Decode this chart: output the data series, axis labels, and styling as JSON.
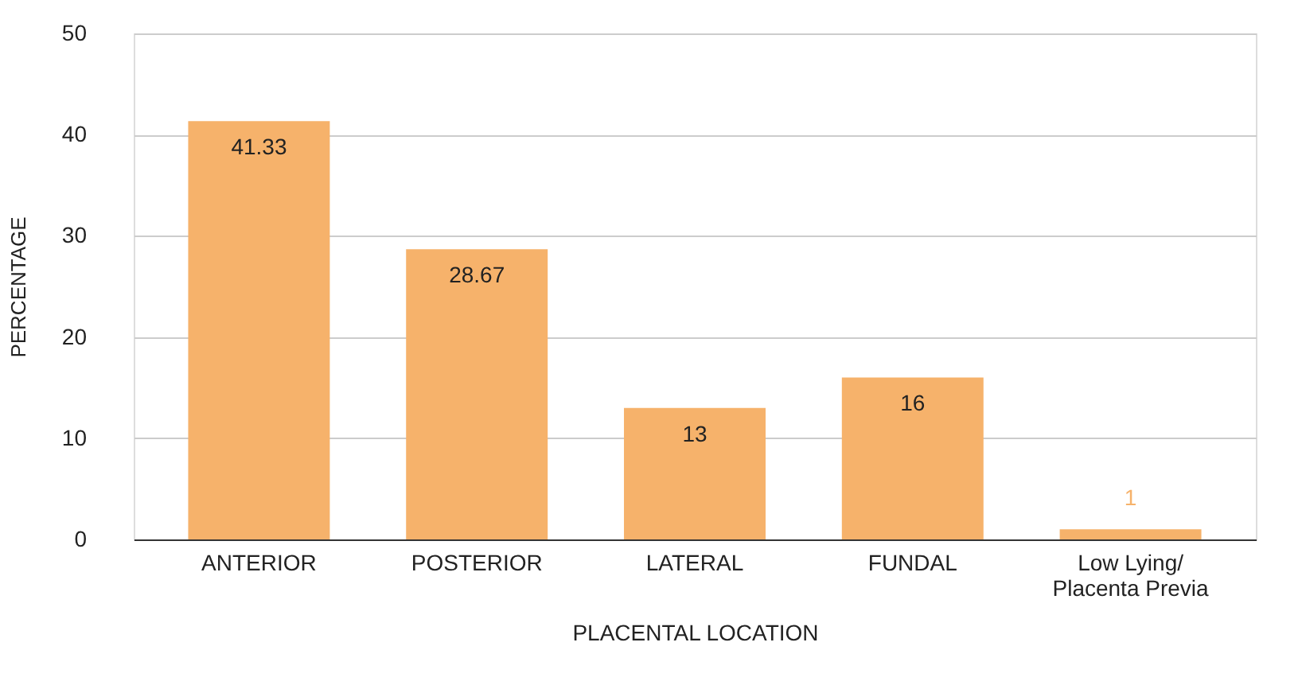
{
  "chart_data": {
    "type": "bar",
    "xlabel": "PLACENTAL LOCATION",
    "ylabel": "PERCENTAGE",
    "categories": [
      "ANTERIOR",
      "POSTERIOR",
      "LATERAL",
      "FUNDAL",
      "Low Lying/ Placenta Previa"
    ],
    "values": [
      41.33,
      28.67,
      13,
      16,
      1
    ],
    "color": "#f6b26b",
    "ylim": [
      0,
      50
    ],
    "yticks": [
      0,
      10,
      20,
      30,
      40,
      50
    ],
    "grid": "y",
    "data_labels": true
  }
}
